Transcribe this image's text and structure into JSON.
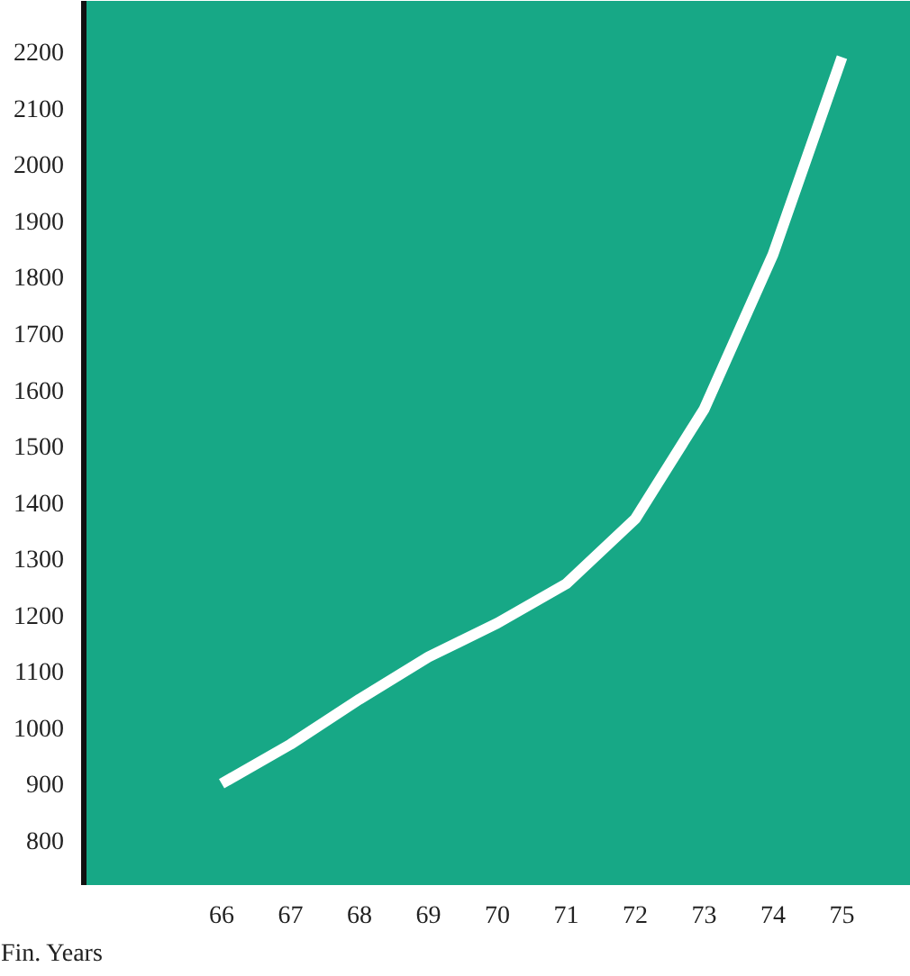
{
  "chart_data": {
    "type": "line",
    "xlabel": "Fin. Years",
    "x": [
      66,
      67,
      68,
      69,
      70,
      71,
      72,
      73,
      74,
      75
    ],
    "series": [
      {
        "color": "#ffffff",
        "values": [
          900,
          970,
          1050,
          1125,
          1185,
          1255,
          1370,
          1565,
          1840,
          2190
        ]
      }
    ],
    "xlim": [
      64,
      76
    ],
    "xticks": [
      66,
      67,
      68,
      69,
      70,
      71,
      72,
      73,
      74,
      75
    ],
    "ylim": [
      720,
      2290
    ],
    "yticks": [
      800,
      900,
      1000,
      1100,
      1200,
      1300,
      1400,
      1500,
      1600,
      1700,
      1800,
      1900,
      2000,
      2100,
      2200
    ],
    "grid": false,
    "marker": "none",
    "line_style": "solid"
  }
}
